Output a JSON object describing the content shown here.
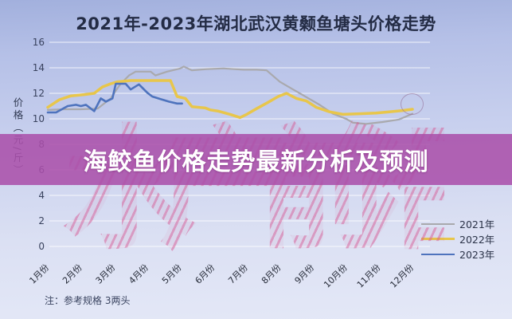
{
  "header": {
    "title": "2021年-2023年湖北武汉黄颡鱼塘头价格走势"
  },
  "banner": {
    "text": "海鲛鱼价格走势最新分析及预测",
    "color": "#aa4faa"
  },
  "watermark": {
    "text": "水产前沿"
  },
  "note": {
    "text": "注：参考规格  3两头"
  },
  "chart_data": {
    "type": "line",
    "title": "2021年-2023年湖北武汉黄颡鱼塘头价格走势",
    "xlabel": "",
    "ylabel": "价格（元/斤）",
    "ylim": [
      0,
      16
    ],
    "ytick_step": 2,
    "grid": true,
    "gridline_color": "rgba(255,255,255,0.8)",
    "legend_position": "bottom-right",
    "categories": [
      "1月份",
      "2月份",
      "3月份",
      "4月份",
      "5月份",
      "6月份",
      "7月份",
      "8月份",
      "9月份",
      "10月份",
      "11月份",
      "12月份"
    ],
    "series": [
      {
        "name": "2021年",
        "color": "#a9a9ad",
        "stroke_width": 2.2,
        "monthly_values": [
          10.7,
          10.75,
          12.2,
          13.7,
          14.0,
          13.9,
          13.85,
          12.9,
          11.3,
          10.0,
          9.65,
          10.4
        ],
        "points": [
          [
            1,
            10.7
          ],
          [
            1.5,
            10.75
          ],
          [
            2,
            10.75
          ],
          [
            2.5,
            10.8
          ],
          [
            2.9,
            11.6
          ],
          [
            3.05,
            12.2
          ],
          [
            3.2,
            12.75
          ],
          [
            3.45,
            13.4
          ],
          [
            3.65,
            13.7
          ],
          [
            4.1,
            13.7
          ],
          [
            4.25,
            13.4
          ],
          [
            4.6,
            13.7
          ],
          [
            5.0,
            13.95
          ],
          [
            5.1,
            14.1
          ],
          [
            5.35,
            13.8
          ],
          [
            5.8,
            13.9
          ],
          [
            6.3,
            13.95
          ],
          [
            6.9,
            13.85
          ],
          [
            7.3,
            13.85
          ],
          [
            7.6,
            13.8
          ],
          [
            8.0,
            12.9
          ],
          [
            8.4,
            12.3
          ],
          [
            8.8,
            11.7
          ],
          [
            9.2,
            11.1
          ],
          [
            9.6,
            10.4
          ],
          [
            10.0,
            10.0
          ],
          [
            10.2,
            9.7
          ],
          [
            10.6,
            9.6
          ],
          [
            11.1,
            9.75
          ],
          [
            11.6,
            9.95
          ],
          [
            12,
            10.4
          ]
        ]
      },
      {
        "name": "2022年",
        "color": "#e8c64b",
        "stroke_width": 3.5,
        "monthly_values": [
          10.9,
          11.85,
          12.9,
          13.0,
          11.7,
          10.7,
          10.35,
          11.9,
          10.95,
          10.4,
          10.5,
          10.75
        ],
        "points": [
          [
            1,
            10.9
          ],
          [
            1.35,
            11.5
          ],
          [
            1.7,
            11.8
          ],
          [
            2.1,
            11.9
          ],
          [
            2.4,
            12.0
          ],
          [
            2.65,
            12.5
          ],
          [
            2.9,
            12.75
          ],
          [
            3.1,
            12.9
          ],
          [
            3.5,
            13.0
          ],
          [
            4.0,
            13.0
          ],
          [
            4.7,
            13.0
          ],
          [
            4.9,
            11.75
          ],
          [
            5.15,
            11.6
          ],
          [
            5.35,
            10.95
          ],
          [
            5.75,
            10.85
          ],
          [
            5.9,
            10.7
          ],
          [
            6.15,
            10.6
          ],
          [
            6.5,
            10.35
          ],
          [
            6.8,
            10.1
          ],
          [
            7.0,
            10.35
          ],
          [
            7.3,
            10.8
          ],
          [
            7.65,
            11.3
          ],
          [
            7.95,
            11.75
          ],
          [
            8.2,
            12.0
          ],
          [
            8.5,
            11.6
          ],
          [
            8.8,
            11.4
          ],
          [
            9.1,
            10.9
          ],
          [
            9.5,
            10.55
          ],
          [
            9.9,
            10.35
          ],
          [
            10.4,
            10.4
          ],
          [
            10.9,
            10.45
          ],
          [
            11.3,
            10.55
          ],
          [
            11.7,
            10.65
          ],
          [
            12,
            10.75
          ]
        ]
      },
      {
        "name": "2023年",
        "color": "#4e73bd",
        "stroke_width": 2.6,
        "monthly_values": [
          10.5,
          11.05,
          12.6,
          12.05,
          11.2,
          null,
          null,
          null,
          null,
          null,
          null,
          null
        ],
        "points": [
          [
            1,
            10.5
          ],
          [
            1.25,
            10.5
          ],
          [
            1.6,
            11.0
          ],
          [
            1.85,
            11.1
          ],
          [
            2.0,
            11.0
          ],
          [
            2.15,
            11.1
          ],
          [
            2.4,
            10.6
          ],
          [
            2.6,
            11.6
          ],
          [
            2.75,
            11.35
          ],
          [
            2.95,
            11.6
          ],
          [
            3.05,
            12.75
          ],
          [
            3.35,
            12.75
          ],
          [
            3.5,
            12.3
          ],
          [
            3.75,
            12.7
          ],
          [
            4.0,
            12.05
          ],
          [
            4.15,
            11.75
          ],
          [
            4.4,
            11.55
          ],
          [
            4.65,
            11.35
          ],
          [
            4.9,
            11.2
          ],
          [
            5.05,
            11.2
          ]
        ]
      }
    ]
  }
}
